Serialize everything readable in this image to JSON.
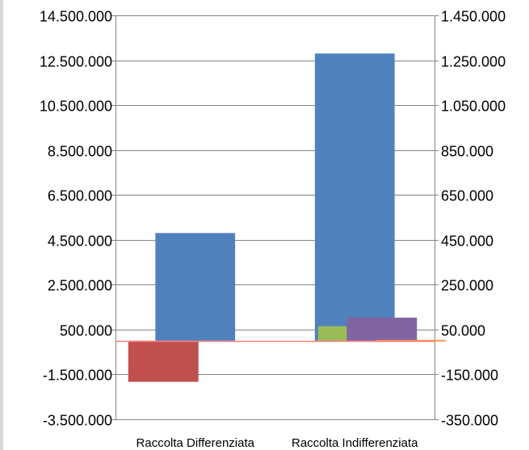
{
  "chart_data": {
    "type": "bar",
    "title": "",
    "xlabel": "",
    "ylabel": "",
    "categories": [
      "Raccolta Differenziata",
      "Raccolta Indifferenziata"
    ],
    "primary_axis": {
      "side": "left",
      "ylim": [
        -3500000,
        14500000
      ],
      "ticks": [
        "14.500.000",
        "12.500.000",
        "10.500.000",
        "8.500.000",
        "6.500.000",
        "4.500.000",
        "2.500.000",
        "500.000",
        "-1.500.000",
        "-3.500.000"
      ],
      "tick_values": [
        14500000,
        12500000,
        10500000,
        8500000,
        6500000,
        4500000,
        2500000,
        500000,
        -1500000,
        -3500000
      ]
    },
    "secondary_axis": {
      "side": "right",
      "ylim": [
        -350000,
        1450000
      ],
      "ticks": [
        "1.450.000",
        "1.250.000",
        "1.050.000",
        "850.000",
        "650.000",
        "450.000",
        "250.000",
        "50.000",
        "-150.000",
        "-350.000"
      ],
      "tick_values": [
        1450000,
        1250000,
        1050000,
        850000,
        650000,
        450000,
        250000,
        50000,
        -150000,
        -350000
      ]
    },
    "grid": true,
    "legend": "none",
    "series": [
      {
        "axis": "primary",
        "color": "#4f81bd",
        "values": [
          4800000,
          12800000
        ]
      },
      {
        "axis": "secondary",
        "color": "#c0504d",
        "values": [
          -183000,
          null
        ]
      },
      {
        "axis": "secondary",
        "color": "#9bbb59",
        "values": [
          null,
          65000
        ]
      },
      {
        "axis": "secondary",
        "color": "#8064a2",
        "values": [
          null,
          103000
        ]
      },
      {
        "axis": "secondary",
        "color": "#f79646",
        "values": [
          null,
          4000
        ]
      }
    ],
    "zero_line_color": "#ff7f7f"
  }
}
